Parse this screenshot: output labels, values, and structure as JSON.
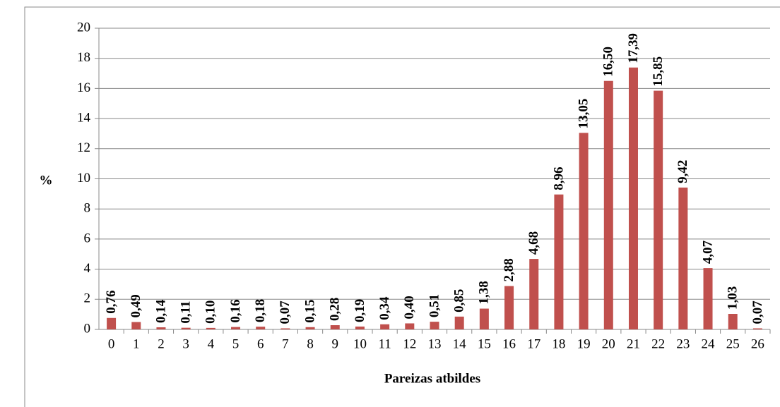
{
  "chart_data": {
    "type": "bar",
    "x_label": "Pareizas atbildes",
    "y_label": "%",
    "categories": [
      "0",
      "1",
      "2",
      "3",
      "4",
      "5",
      "6",
      "7",
      "8",
      "9",
      "10",
      "11",
      "12",
      "13",
      "14",
      "15",
      "16",
      "17",
      "18",
      "19",
      "20",
      "21",
      "22",
      "23",
      "24",
      "25",
      "26"
    ],
    "values": [
      0.76,
      0.49,
      0.14,
      0.11,
      0.1,
      0.16,
      0.18,
      0.07,
      0.15,
      0.28,
      0.19,
      0.34,
      0.4,
      0.51,
      0.85,
      1.38,
      2.88,
      4.68,
      8.96,
      13.05,
      16.5,
      17.39,
      15.85,
      9.42,
      4.07,
      1.03,
      0.07
    ],
    "value_labels": [
      "0,76",
      "0,49",
      "0,14",
      "0,11",
      "0,10",
      "0,16",
      "0,18",
      "0,07",
      "0,15",
      "0,28",
      "0,19",
      "0,34",
      "0,40",
      "0,51",
      "0,85",
      "1,38",
      "2,88",
      "4,68",
      "8,96",
      "13,05",
      "16,50",
      "17,39",
      "15,85",
      "9,42",
      "4,07",
      "1,03",
      "0,07"
    ],
    "color": "#c0504d",
    "ylim": [
      0,
      20
    ],
    "yticks": [
      0,
      2,
      4,
      6,
      8,
      10,
      12,
      14,
      16,
      18,
      20
    ],
    "grid": true
  }
}
